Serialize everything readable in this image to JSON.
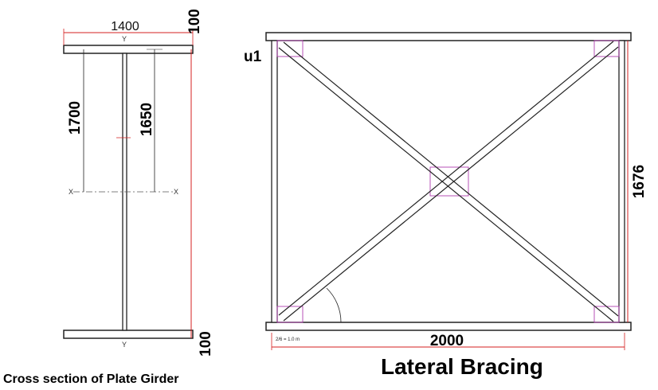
{
  "cross_section": {
    "top_width_label": "1400",
    "top_flange_label": "100",
    "bottom_flange_label": "100",
    "depth_outer_label": "1700",
    "depth_inner_label": "1650",
    "axis_y_label": "Y",
    "axis_x_label": "X",
    "caption": "Cross section of Plate Girder"
  },
  "bracing": {
    "member_label": "u1",
    "height_label": "1676",
    "width_label": "2000",
    "caption": "Lateral Bracing",
    "note_fraction": "2/6 = 1.0 m"
  },
  "colors": {
    "dimension_line": "#d42020",
    "steel_outline": "#222222",
    "gusset": "#b040b0",
    "center_line": "#555555"
  }
}
